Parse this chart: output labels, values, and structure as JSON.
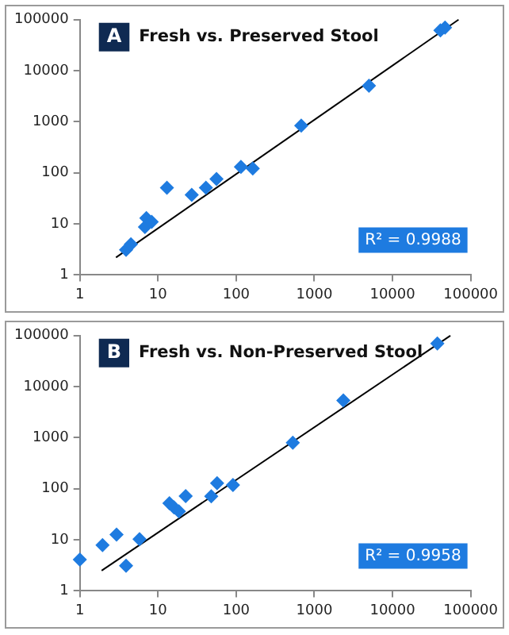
{
  "chart_data": [
    {
      "type": "scatter",
      "title": "Fresh vs. Preserved Stool",
      "annotations": [
        "A",
        "R² = 0.9988"
      ],
      "log": "xy",
      "marker": "diamond",
      "legend": false,
      "grid": false,
      "xlim": [
        1,
        100000
      ],
      "ylim": [
        1,
        100000
      ],
      "xticks": [
        1,
        10,
        100,
        1000,
        10000,
        100000
      ],
      "yticks": [
        1,
        10,
        100,
        1000,
        10000,
        100000
      ],
      "series": [
        {
          "color": "#1e7be0",
          "x": [
            3.9,
            4.5,
            7.1,
            6.8,
            8.3,
            13,
            27,
            41,
            56,
            115,
            163,
            680,
            5000,
            41000,
            47000
          ],
          "values": [
            3.1,
            4,
            13,
            8.7,
            11,
            51,
            37,
            51,
            76,
            131,
            122,
            840,
            5100,
            62000,
            70000
          ]
        },
        {
          "type": "line",
          "marker": "none",
          "color": "#000000",
          "x": [
            2.9,
            70000
          ],
          "values": [
            2.2,
            100000
          ]
        }
      ]
    },
    {
      "type": "scatter",
      "title": "Fresh vs. Non-Preserved Stool",
      "annotations": [
        "B",
        "R² = 0.9958"
      ],
      "log": "xy",
      "marker": "diamond",
      "legend": false,
      "grid": false,
      "xlim": [
        1,
        100000
      ],
      "ylim": [
        1,
        100000
      ],
      "xticks": [
        1,
        10,
        100,
        1000,
        10000,
        100000
      ],
      "yticks": [
        1,
        10,
        100,
        1000,
        10000,
        100000
      ],
      "series": [
        {
          "color": "#1e7be0",
          "x": [
            1,
            1.95,
            2.95,
            3.9,
            5.8,
            14,
            16,
            18.5,
            22.6,
            48,
            57,
            91,
            530,
            2350,
            37500
          ],
          "values": [
            4.1,
            7.9,
            12.7,
            3.1,
            10.3,
            52,
            43,
            36,
            72,
            71,
            128,
            119,
            800,
            5350,
            70000
          ]
        },
        {
          "type": "line",
          "marker": "none",
          "color": "#000000",
          "x": [
            1.9,
            55000
          ],
          "values": [
            2.5,
            100000
          ]
        }
      ]
    }
  ]
}
